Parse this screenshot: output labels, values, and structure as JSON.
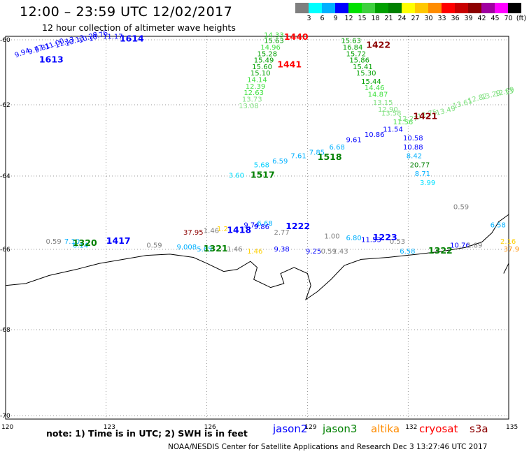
{
  "header": {
    "title": "12:00 – 23:59 UTC 12/02/2017",
    "subtitle": "12 hour collection of altimeter wave heights"
  },
  "legend": {
    "unit": "(ft)",
    "colors": [
      "#7f7f7f",
      "#00ffff",
      "#00b0ff",
      "#0000ff",
      "#00e000",
      "#3ed03e",
      "#00a000",
      "#008000",
      "#ffff00",
      "#ffc800",
      "#ff8c00",
      "#ff0000",
      "#c80000",
      "#8c0000",
      "#a000a0",
      "#ff00ff",
      "#000000"
    ],
    "labels": [
      "3",
      "6",
      "9",
      "12",
      "15",
      "18",
      "21",
      "24",
      "27",
      "30",
      "33",
      "36",
      "39",
      "42",
      "45",
      "70"
    ]
  },
  "axes": {
    "x_ticks": [
      120,
      123,
      126,
      129,
      132,
      135
    ],
    "y_ticks": [
      -60,
      -62,
      -64,
      -66,
      -68,
      -70
    ],
    "lon_range": [
      120,
      135
    ],
    "lat_range": [
      -60,
      -70
    ]
  },
  "coast_lines": [
    [
      [
        120,
        -66.9
      ],
      [
        120.6,
        -66.85
      ],
      [
        121.3,
        -66.65
      ],
      [
        122.1,
        -66.5
      ],
      [
        122.8,
        -66.35
      ],
      [
        123.5,
        -66.25
      ],
      [
        124.2,
        -66.15
      ],
      [
        124.9,
        -66.12
      ],
      [
        125.6,
        -66.2
      ],
      [
        126,
        -66.35
      ],
      [
        126.5,
        -66.55
      ],
      [
        126.9,
        -66.5
      ],
      [
        127.3,
        -66.3
      ],
      [
        127.5,
        -66.45
      ],
      [
        127.4,
        -66.75
      ],
      [
        127.9,
        -66.95
      ],
      [
        128.3,
        -66.85
      ],
      [
        128.2,
        -66.6
      ],
      [
        128.6,
        -66.45
      ],
      [
        129,
        -66.6
      ],
      [
        129.1,
        -66.9
      ],
      [
        128.95,
        -67.25
      ],
      [
        129.3,
        -67.05
      ],
      [
        129.7,
        -66.75
      ],
      [
        130.1,
        -66.4
      ],
      [
        130.6,
        -66.25
      ],
      [
        131.4,
        -66.2
      ],
      [
        132.3,
        -66.12
      ],
      [
        133,
        -66.05
      ],
      [
        133.7,
        -65.95
      ],
      [
        134.2,
        -65.8
      ],
      [
        134.5,
        -65.55
      ],
      [
        134.7,
        -65.25
      ],
      [
        135,
        -65.05
      ]
    ],
    [
      [
        134.85,
        -66.6
      ],
      [
        135,
        -66.35
      ]
    ]
  ],
  "observations": [
    {
      "lon": 120.3,
      "lat": -60.55,
      "v": "9.94",
      "c": "#0000ff",
      "r": -20
    },
    {
      "lon": 120.7,
      "lat": -60.45,
      "v": "9.77",
      "c": "#0000ff",
      "r": -20
    },
    {
      "lon": 120.9,
      "lat": -60.4,
      "v": "9.81",
      "c": "#0000ff",
      "r": -20
    },
    {
      "lon": 121.2,
      "lat": -60.3,
      "v": "11.00",
      "c": "#0000ff",
      "r": -20
    },
    {
      "lon": 121.5,
      "lat": -60.25,
      "v": "11.13",
      "c": "#0000ff",
      "r": -20
    },
    {
      "lon": 121.8,
      "lat": -60.2,
      "v": "10.13",
      "c": "#0000ff",
      "r": -20
    },
    {
      "lon": 122.2,
      "lat": -60.1,
      "v": "10.28",
      "c": "#0000ff",
      "r": -20
    },
    {
      "lon": 122.5,
      "lat": -60.05,
      "v": "10.76",
      "c": "#0000ff",
      "r": -20
    },
    {
      "lon": 122.9,
      "lat": -59.97,
      "v": "11.17",
      "c": "#0000ff",
      "r": 0
    },
    {
      "lon": 127.7,
      "lat": -59.92,
      "v": "14.33",
      "c": "#40e040",
      "r": 0
    },
    {
      "lon": 127.7,
      "lat": -60.1,
      "v": "15.63",
      "c": "#00a000",
      "r": 0
    },
    {
      "lon": 127.6,
      "lat": -60.3,
      "v": "14.96",
      "c": "#40e040",
      "r": 0
    },
    {
      "lon": 127.5,
      "lat": -60.5,
      "v": "15.28",
      "c": "#00a000",
      "r": 0
    },
    {
      "lon": 127.4,
      "lat": -60.7,
      "v": "15.49",
      "c": "#00a000",
      "r": 0
    },
    {
      "lon": 127.35,
      "lat": -60.9,
      "v": "15.60",
      "c": "#00a000",
      "r": 0
    },
    {
      "lon": 127.3,
      "lat": -61.1,
      "v": "15.10",
      "c": "#00a000",
      "r": 0
    },
    {
      "lon": 127.2,
      "lat": -61.3,
      "v": "14.14",
      "c": "#40e040",
      "r": 0
    },
    {
      "lon": 127.15,
      "lat": -61.5,
      "v": "12.39",
      "c": "#40e040",
      "r": 0
    },
    {
      "lon": 127.1,
      "lat": -61.7,
      "v": "12.63",
      "c": "#40e040",
      "r": 0
    },
    {
      "lon": 127.05,
      "lat": -61.9,
      "v": "13.73",
      "c": "#80e080",
      "r": 0
    },
    {
      "lon": 126.95,
      "lat": -62.1,
      "v": "13.08",
      "c": "#80e080",
      "r": 0
    },
    {
      "lon": 130.0,
      "lat": -60.1,
      "v": "15.63",
      "c": "#00a000",
      "r": 0
    },
    {
      "lon": 130.05,
      "lat": -60.3,
      "v": "16.84",
      "c": "#00a000",
      "r": 0
    },
    {
      "lon": 130.15,
      "lat": -60.5,
      "v": "15.72",
      "c": "#00a000",
      "r": 0
    },
    {
      "lon": 130.25,
      "lat": -60.7,
      "v": "15.86",
      "c": "#00a000",
      "r": 0
    },
    {
      "lon": 130.35,
      "lat": -60.9,
      "v": "15.41",
      "c": "#00a000",
      "r": 0
    },
    {
      "lon": 130.45,
      "lat": -61.1,
      "v": "15.30",
      "c": "#00a000",
      "r": 0
    },
    {
      "lon": 130.6,
      "lat": -61.35,
      "v": "15.44",
      "c": "#00a000",
      "r": 0
    },
    {
      "lon": 130.7,
      "lat": -61.55,
      "v": "14.46",
      "c": "#40e040",
      "r": 0
    },
    {
      "lon": 130.8,
      "lat": -61.75,
      "v": "14.87",
      "c": "#40e040",
      "r": 0
    },
    {
      "lon": 130.95,
      "lat": -62.0,
      "v": "13.15",
      "c": "#80e080",
      "r": 0
    },
    {
      "lon": 131.1,
      "lat": -62.2,
      "v": "12.90",
      "c": "#80e080",
      "r": 0
    },
    {
      "lon": 131.2,
      "lat": -62.3,
      "v": "13.58",
      "c": "#80e080",
      "r": 0
    },
    {
      "lon": 131.55,
      "lat": -62.55,
      "v": "11.56",
      "c": "#40e040",
      "r": 0
    },
    {
      "lon": 131.7,
      "lat": -62.45,
      "v": "12.27",
      "c": "#80e080",
      "r": 0
    },
    {
      "lon": 132.3,
      "lat": -62.4,
      "v": "12.75",
      "c": "#80e080",
      "r": -15
    },
    {
      "lon": 132.85,
      "lat": -62.3,
      "v": "13.49",
      "c": "#80e080",
      "r": -15
    },
    {
      "lon": 133.35,
      "lat": -62.1,
      "v": "13.61",
      "c": "#80e080",
      "r": -15
    },
    {
      "lon": 133.8,
      "lat": -61.95,
      "v": "12.82",
      "c": "#80e080",
      "r": -15
    },
    {
      "lon": 134.2,
      "lat": -61.85,
      "v": "13.29",
      "c": "#80e080",
      "r": -15
    },
    {
      "lon": 134.6,
      "lat": -61.75,
      "v": "12.69",
      "c": "#80e080",
      "r": -15
    },
    {
      "lon": 134.9,
      "lat": -61.7,
      "v": "13",
      "c": "#80e080",
      "r": -15
    },
    {
      "lon": 127.4,
      "lat": -63.75,
      "v": "5.68",
      "c": "#00d0ff",
      "r": 0
    },
    {
      "lon": 127.95,
      "lat": -63.65,
      "v": "6.59",
      "c": "#00b0ff",
      "r": 0
    },
    {
      "lon": 128.5,
      "lat": -63.5,
      "v": "7.61",
      "c": "#00b0ff",
      "r": 0
    },
    {
      "lon": 129.05,
      "lat": -63.4,
      "v": "7.85",
      "c": "#00b0ff",
      "r": 0
    },
    {
      "lon": 129.65,
      "lat": -63.25,
      "v": "6.68",
      "c": "#00b0ff",
      "r": 0
    },
    {
      "lon": 130.15,
      "lat": -63.05,
      "v": "9.61",
      "c": "#0000ff",
      "r": 0
    },
    {
      "lon": 130.7,
      "lat": -62.9,
      "v": "10.86",
      "c": "#0000ff",
      "r": 0
    },
    {
      "lon": 131.25,
      "lat": -62.75,
      "v": "11.54",
      "c": "#0000ff",
      "r": 0
    },
    {
      "lon": 131.85,
      "lat": -63.0,
      "v": "10.58",
      "c": "#0000ff",
      "r": 0
    },
    {
      "lon": 131.85,
      "lat": -63.25,
      "v": "10.88",
      "c": "#0000ff",
      "r": 0
    },
    {
      "lon": 131.95,
      "lat": -63.5,
      "v": "8.42",
      "c": "#00b0ff",
      "r": 0
    },
    {
      "lon": 132.05,
      "lat": -63.75,
      "v": "20.77",
      "c": "#008000",
      "r": 0
    },
    {
      "lon": 132.2,
      "lat": -64.0,
      "v": "8.71",
      "c": "#00b0ff",
      "r": 0
    },
    {
      "lon": 132.35,
      "lat": -64.25,
      "v": "3.99",
      "c": "#00e0ff",
      "r": 0
    },
    {
      "lon": 126.65,
      "lat": -64.05,
      "v": "3.60",
      "c": "#00e0ff",
      "r": 0
    },
    {
      "lon": 133.35,
      "lat": -64.9,
      "v": "0.59",
      "c": "#808080",
      "r": 0
    },
    {
      "lon": 121.2,
      "lat": -65.85,
      "v": "0.59",
      "c": "#808080",
      "r": 0
    },
    {
      "lon": 121.75,
      "lat": -65.85,
      "v": "7.10",
      "c": "#00b0ff",
      "r": 0
    },
    {
      "lon": 122.0,
      "lat": -65.95,
      "v": "6.14",
      "c": "#00b0ff",
      "r": 0
    },
    {
      "lon": 124.2,
      "lat": -65.95,
      "v": "0.59",
      "c": "#808080",
      "r": 0
    },
    {
      "lon": 125.3,
      "lat": -65.6,
      "v": "37.95",
      "c": "#8c0000",
      "r": 0
    },
    {
      "lon": 125.9,
      "lat": -65.55,
      "v": "1.46",
      "c": "#808080",
      "r": 0
    },
    {
      "lon": 126.3,
      "lat": -65.5,
      "v": "1.2",
      "c": "#ffd000",
      "r": 0
    },
    {
      "lon": 127.1,
      "lat": -65.4,
      "v": "9.74",
      "c": "#0000ff",
      "r": 0
    },
    {
      "lon": 127.5,
      "lat": -65.35,
      "v": "6.68",
      "c": "#00b0ff",
      "r": 0
    },
    {
      "lon": 127.4,
      "lat": -65.45,
      "v": "9.86",
      "c": "#0000ff",
      "r": 0
    },
    {
      "lon": 128.0,
      "lat": -65.6,
      "v": "2.77",
      "c": "#808080",
      "r": 0
    },
    {
      "lon": 125.1,
      "lat": -66.0,
      "v": "9.008",
      "c": "#00b0ff",
      "r": 0
    },
    {
      "lon": 125.7,
      "lat": -66.05,
      "v": "5.65",
      "c": "#00b0ff",
      "r": 0
    },
    {
      "lon": 126.6,
      "lat": -66.05,
      "v": "1.46",
      "c": "#808080",
      "r": 0
    },
    {
      "lon": 127.2,
      "lat": -66.1,
      "v": "1.46",
      "c": "#ffd000",
      "r": 0
    },
    {
      "lon": 128.0,
      "lat": -66.05,
      "v": "9.38",
      "c": "#0000ff",
      "r": 0
    },
    {
      "lon": 128.95,
      "lat": -66.1,
      "v": "9.25",
      "c": "#0000ff",
      "r": 0
    },
    {
      "lon": 129.4,
      "lat": -66.1,
      "v": "0.59",
      "c": "#808080",
      "r": 0
    },
    {
      "lon": 129.75,
      "lat": -66.1,
      "v": "1.43",
      "c": "#808080",
      "r": 0
    },
    {
      "lon": 129.5,
      "lat": -65.7,
      "v": "1.00",
      "c": "#808080",
      "r": 0
    },
    {
      "lon": 130.15,
      "lat": -65.75,
      "v": "6.80",
      "c": "#00b0ff",
      "r": 0
    },
    {
      "lon": 130.6,
      "lat": -65.8,
      "v": "11.53",
      "c": "#0000ff",
      "r": 0
    },
    {
      "lon": 131.45,
      "lat": -65.85,
      "v": "0.53",
      "c": "#808080",
      "r": 0
    },
    {
      "lon": 131.75,
      "lat": -66.1,
      "v": "6.58",
      "c": "#00b0ff",
      "r": 0
    },
    {
      "lon": 133.25,
      "lat": -65.95,
      "v": "10.76",
      "c": "#0000ff",
      "r": 0
    },
    {
      "lon": 133.75,
      "lat": -65.95,
      "v": "1.89",
      "c": "#808080",
      "r": 0
    },
    {
      "lon": 134.45,
      "lat": -65.4,
      "v": "6.58",
      "c": "#00b0ff",
      "r": 0
    },
    {
      "lon": 134.75,
      "lat": -65.85,
      "v": "2.16",
      "c": "#ffd000",
      "r": 0
    },
    {
      "lon": 134.85,
      "lat": -66.05,
      "v": "37.9",
      "c": "#ff8c00",
      "r": 0
    }
  ],
  "pass_labels": [
    {
      "lon": 123.4,
      "lat": -60.05,
      "v": "1614",
      "c": "#0000ff"
    },
    {
      "lon": 121.0,
      "lat": -60.7,
      "v": "1613",
      "c": "#0000ff"
    },
    {
      "lon": 128.3,
      "lat": -60.0,
      "v": "1440",
      "c": "#ff0000"
    },
    {
      "lon": 130.75,
      "lat": -60.25,
      "v": "1422",
      "c": "#8c0000"
    },
    {
      "lon": 128.1,
      "lat": -60.85,
      "v": "1441",
      "c": "#ff0000"
    },
    {
      "lon": 132.15,
      "lat": -62.4,
      "v": "1421",
      "c": "#8c0000"
    },
    {
      "lon": 129.3,
      "lat": -63.55,
      "v": "1518",
      "c": "#008000"
    },
    {
      "lon": 127.3,
      "lat": -64.05,
      "v": "1517",
      "c": "#008000"
    },
    {
      "lon": 122.0,
      "lat": -65.9,
      "v": "1320",
      "c": "#008000"
    },
    {
      "lon": 123.0,
      "lat": -65.85,
      "v": "1417",
      "c": "#0000ff"
    },
    {
      "lon": 126.6,
      "lat": -65.55,
      "v": "1418",
      "c": "#0000ff"
    },
    {
      "lon": 128.35,
      "lat": -65.45,
      "v": "1222",
      "c": "#0000ff"
    },
    {
      "lon": 125.9,
      "lat": -66.05,
      "v": "1321",
      "c": "#008000"
    },
    {
      "lon": 130.95,
      "lat": -65.75,
      "v": "1223",
      "c": "#0000ff"
    },
    {
      "lon": 132.6,
      "lat": -66.1,
      "v": "1322",
      "c": "#008000"
    }
  ],
  "footer": {
    "note": "note:  1) Time is in UTC;  2) SWH is in feet",
    "satellites": [
      {
        "name": "jason2",
        "color": "#0000ff"
      },
      {
        "name": "jason3",
        "color": "#008000"
      },
      {
        "name": "altika",
        "color": "#ff8c00"
      },
      {
        "name": "cryosat",
        "color": "#ff0000"
      },
      {
        "name": "s3a",
        "color": "#8c0000"
      }
    ],
    "credit": "NOAA/NESDIS Center for Satellite Applications and Research    Dec  3 13:27:46 UTC 2017"
  }
}
